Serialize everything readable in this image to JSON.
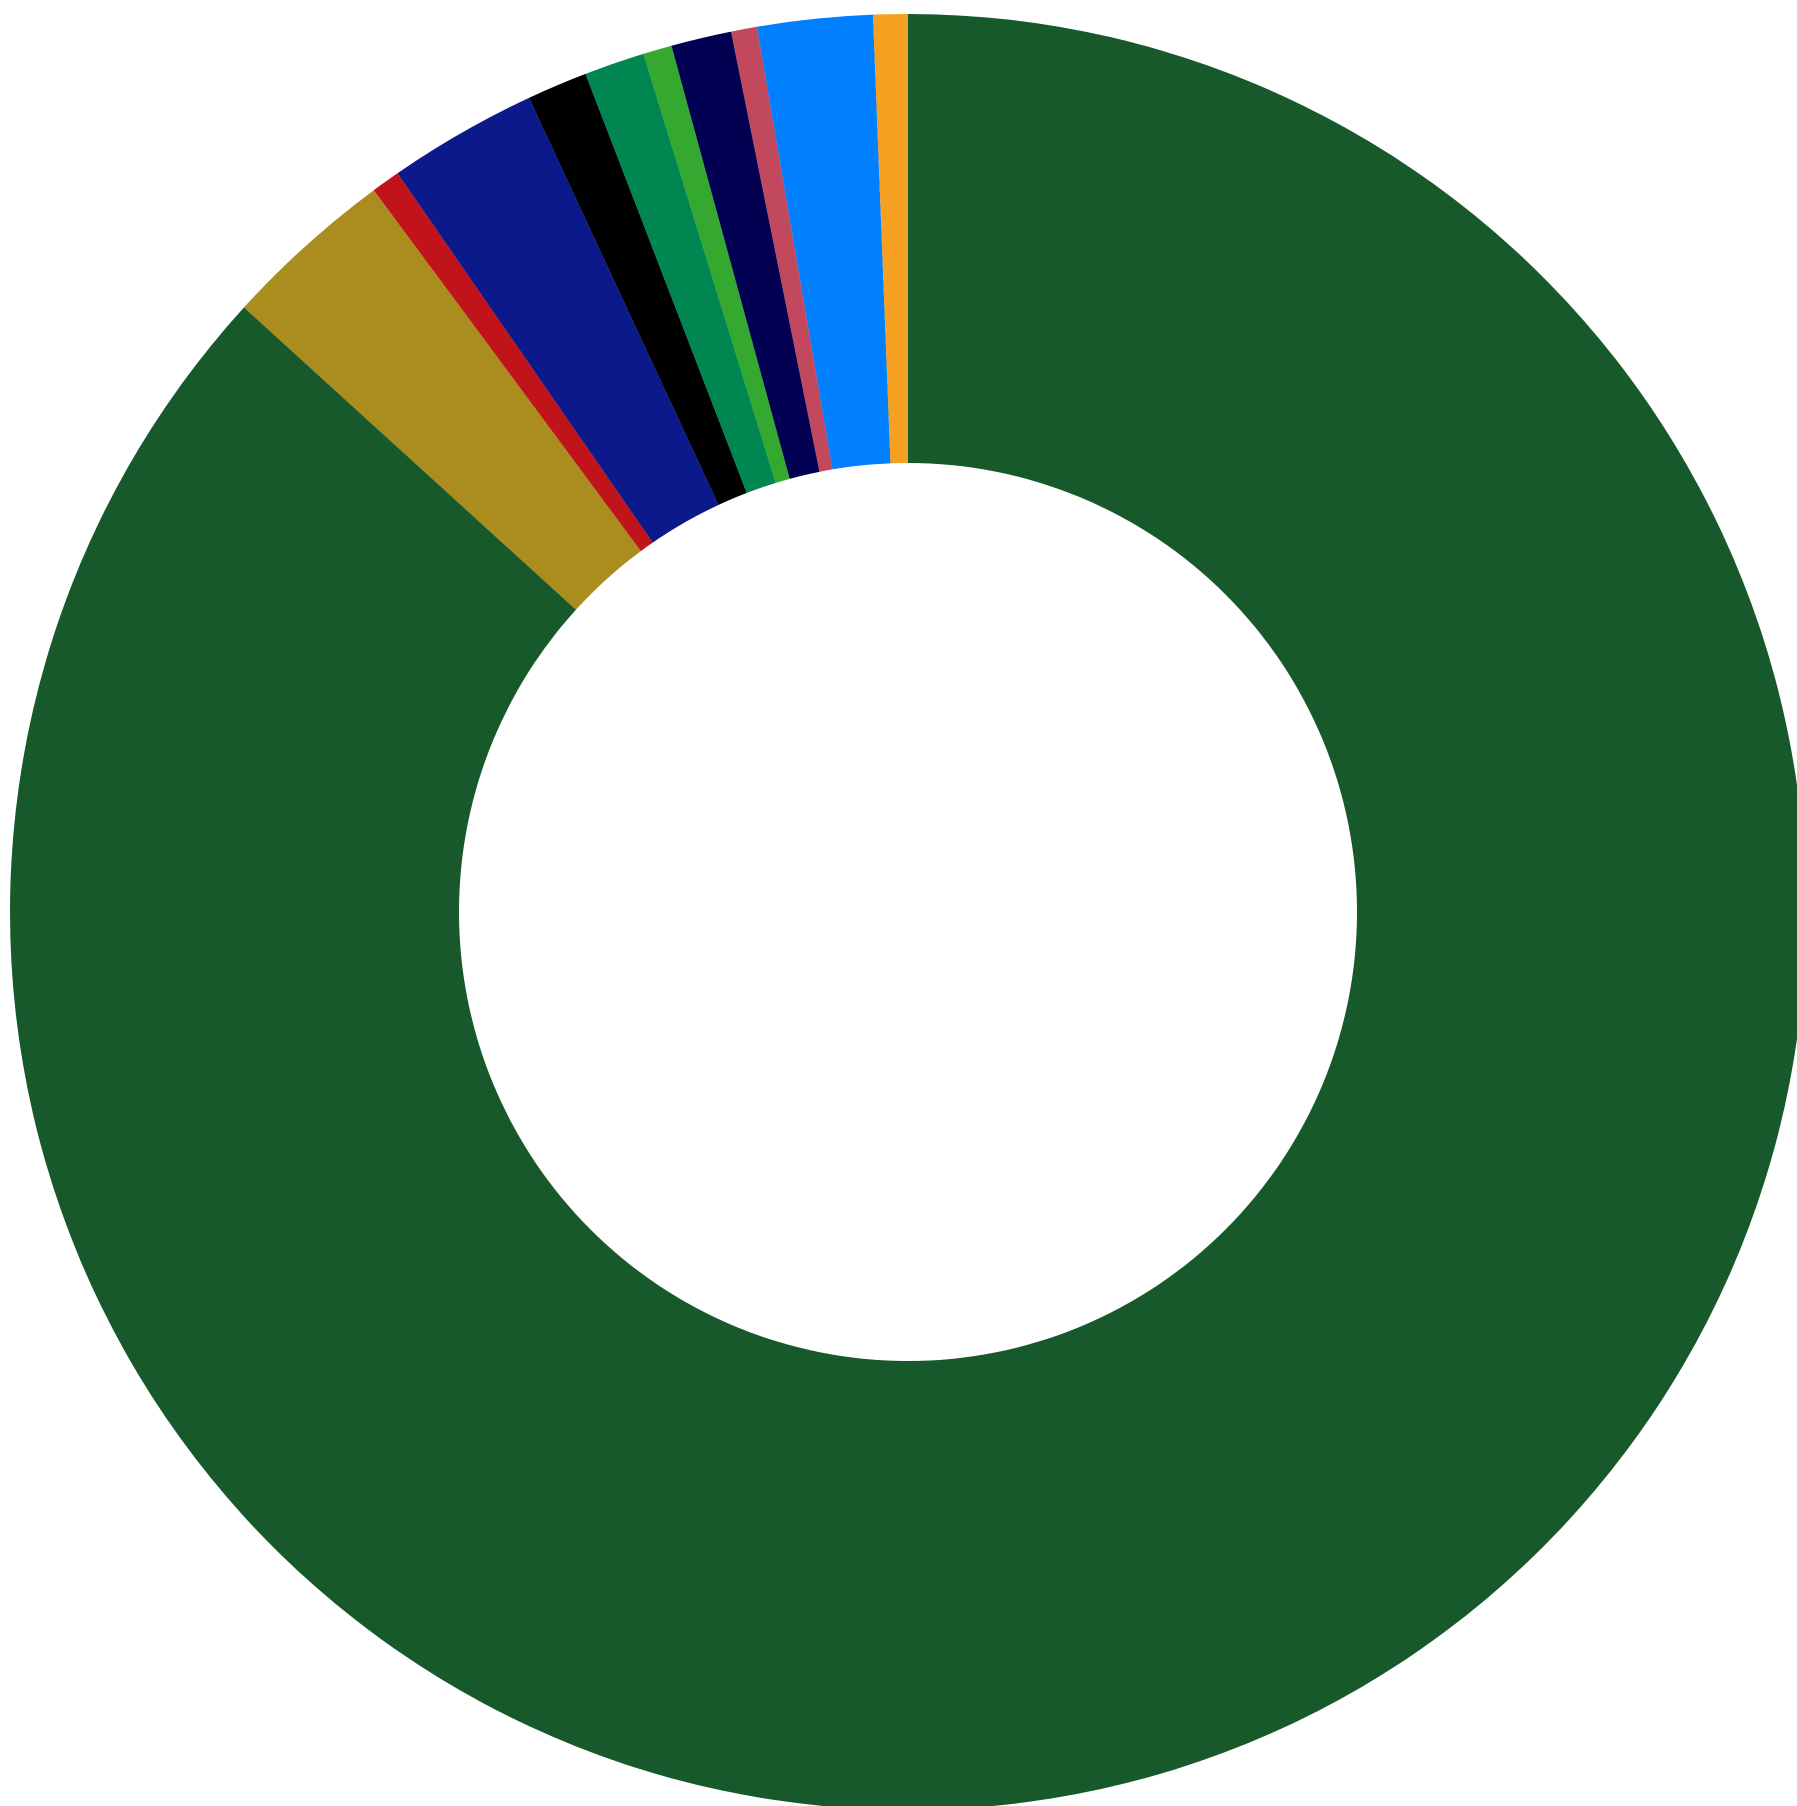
{
  "chart_data": {
    "type": "pie",
    "donut": true,
    "title": "",
    "legend": "none",
    "slices": [
      {
        "value": 83.84,
        "color": "#18592b"
      },
      {
        "value": 3.0,
        "color": "#aa8c1f"
      },
      {
        "value": 0.5,
        "color": "#c0141a"
      },
      {
        "value": 2.6,
        "color": "#0b198a"
      },
      {
        "value": 1.05,
        "color": "#000000"
      },
      {
        "value": 1.05,
        "color": "#008651"
      },
      {
        "value": 0.5,
        "color": "#35a830"
      },
      {
        "value": 1.05,
        "color": "#020052"
      },
      {
        "value": 0.45,
        "color": "#c2495d"
      },
      {
        "value": 2.0,
        "color": "#0080ff"
      },
      {
        "value": 0.6,
        "color": "#f5a020"
      }
    ]
  }
}
